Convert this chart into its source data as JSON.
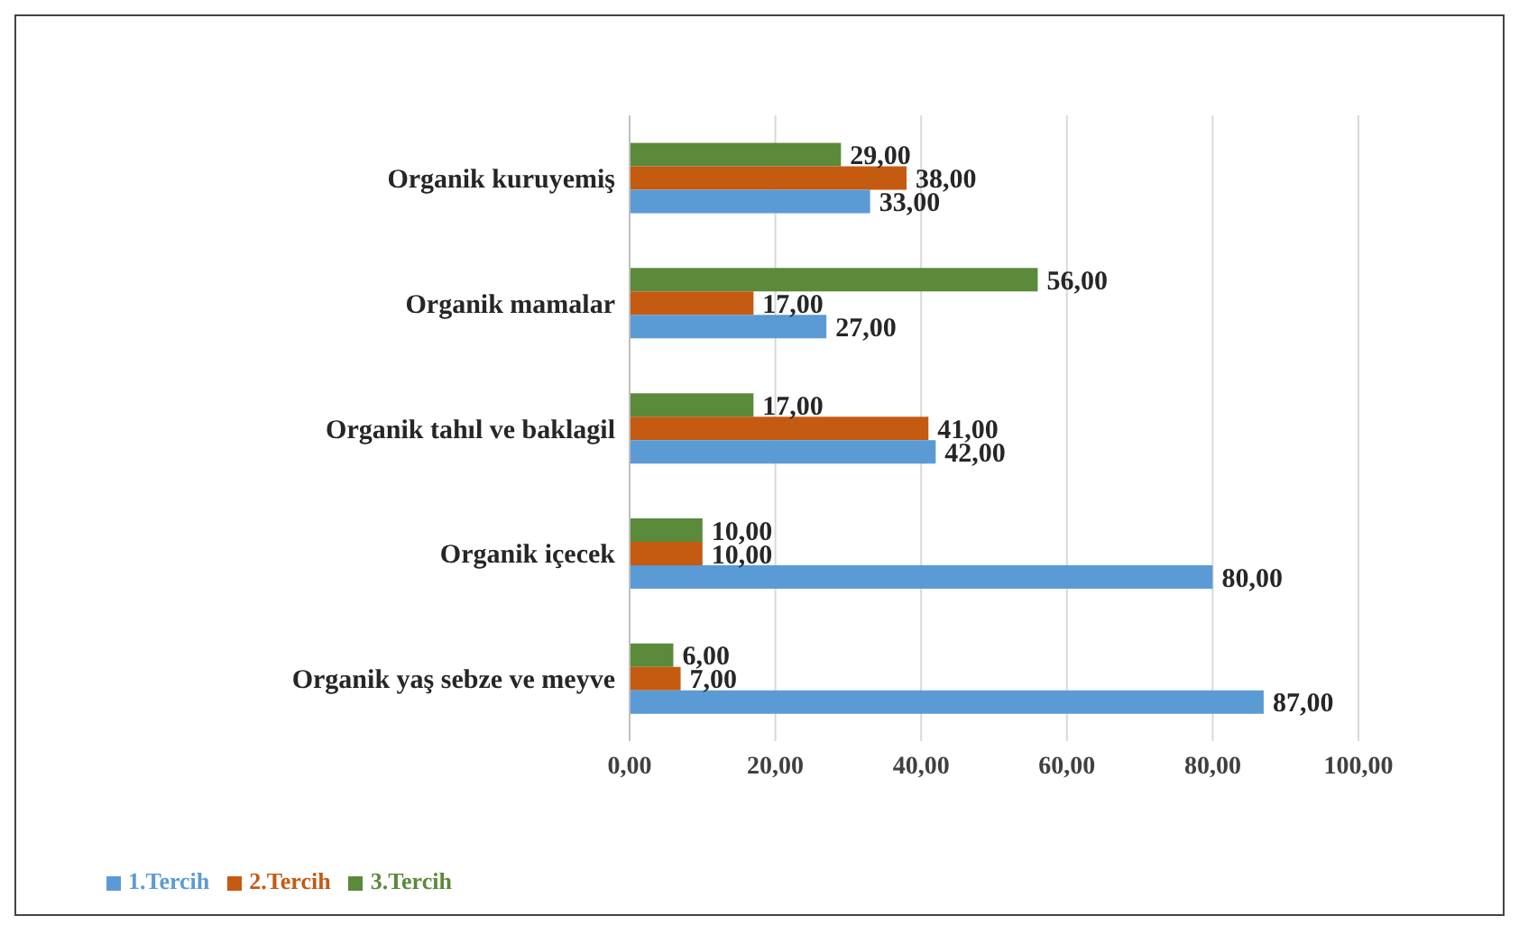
{
  "chart_data": {
    "type": "bar",
    "orientation": "horizontal",
    "categories": [
      "Organik kuruyemiş",
      "Organik mamalar",
      "Organik tahıl ve baklagil",
      "Organik içecek",
      "Organik yaş sebze ve meyve"
    ],
    "series": [
      {
        "name": "3.Tercih",
        "color": "#5a8a3a",
        "values": [
          29,
          56,
          17,
          10,
          6
        ],
        "value_labels": [
          "29,00",
          "56,00",
          "17,00",
          "10,00",
          "6,00"
        ]
      },
      {
        "name": "2.Tercih",
        "color": "#c55a11",
        "values": [
          38,
          17,
          41,
          10,
          7
        ],
        "value_labels": [
          "38,00",
          "17,00",
          "41,00",
          "10,00",
          "7,00"
        ]
      },
      {
        "name": "1.Tercih",
        "color": "#5b9bd5",
        "values": [
          33,
          27,
          42,
          80,
          87
        ],
        "value_labels": [
          "33,00",
          "27,00",
          "42,00",
          "80,00",
          "87,00"
        ]
      }
    ],
    "xlim": [
      0,
      100
    ],
    "xticks": [
      {
        "value": 0,
        "label": "0,00"
      },
      {
        "value": 20,
        "label": "20,00"
      },
      {
        "value": 40,
        "label": "40,00"
      },
      {
        "value": 60,
        "label": "60,00"
      },
      {
        "value": 80,
        "label": "80,00"
      },
      {
        "value": 100,
        "label": "100,00"
      }
    ],
    "grid": "x",
    "legend": "bottom left"
  }
}
